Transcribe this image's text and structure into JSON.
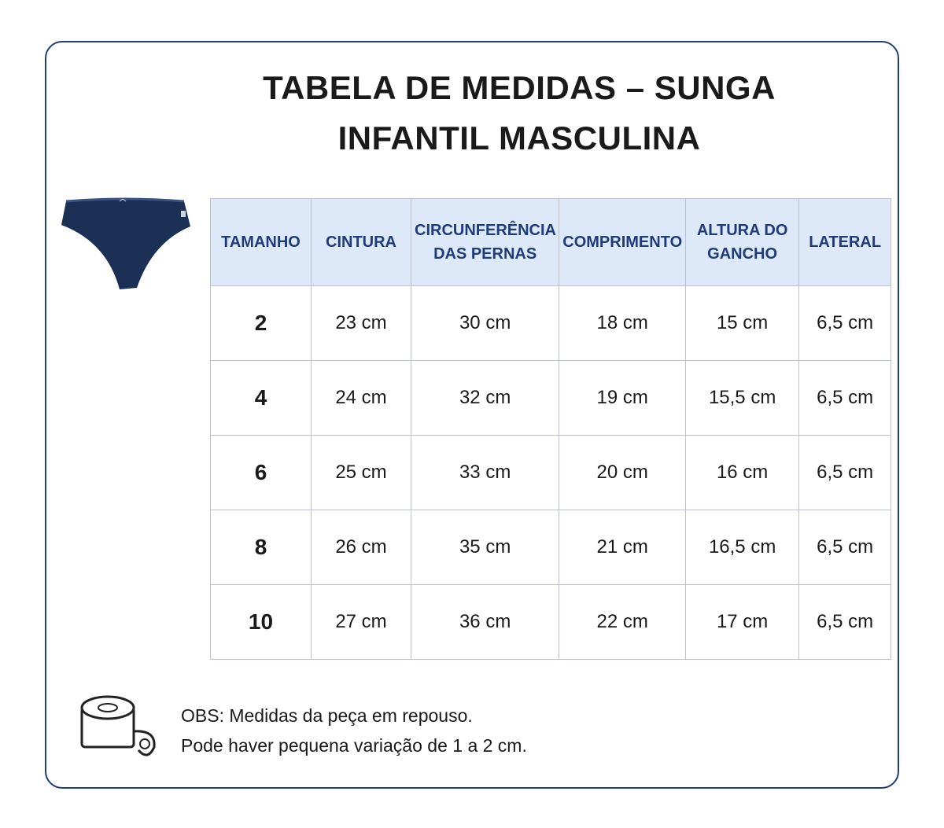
{
  "header": {
    "title_lines": [
      "TABELA DE MEDIDAS – SUNGA",
      "INFANTIL MASCULINA"
    ]
  },
  "table": {
    "columns": [
      "TAMANHO",
      "CINTURA",
      "CIRCUNFERÊNCIA DAS PERNAS",
      "COMPRIMENTO",
      "ALTURA DO GANCHO",
      "LATERAL"
    ],
    "rows": [
      [
        "2",
        "23 cm",
        "30 cm",
        "18 cm",
        "15 cm",
        "6,5 cm"
      ],
      [
        "4",
        "24 cm",
        "32 cm",
        "19 cm",
        "15,5 cm",
        "6,5 cm"
      ],
      [
        "6",
        "25 cm",
        "33 cm",
        "20 cm",
        "16 cm",
        "6,5 cm"
      ],
      [
        "8",
        "26 cm",
        "35 cm",
        "21 cm",
        "16,5 cm",
        "6,5 cm"
      ],
      [
        "10",
        "27 cm",
        "36 cm",
        "22 cm",
        "17 cm",
        "6,5 cm"
      ]
    ]
  },
  "notes": [
    "OBS: Medidas da peça em repouso.",
    "Pode haver pequena variação de 1 a 2 cm."
  ]
}
